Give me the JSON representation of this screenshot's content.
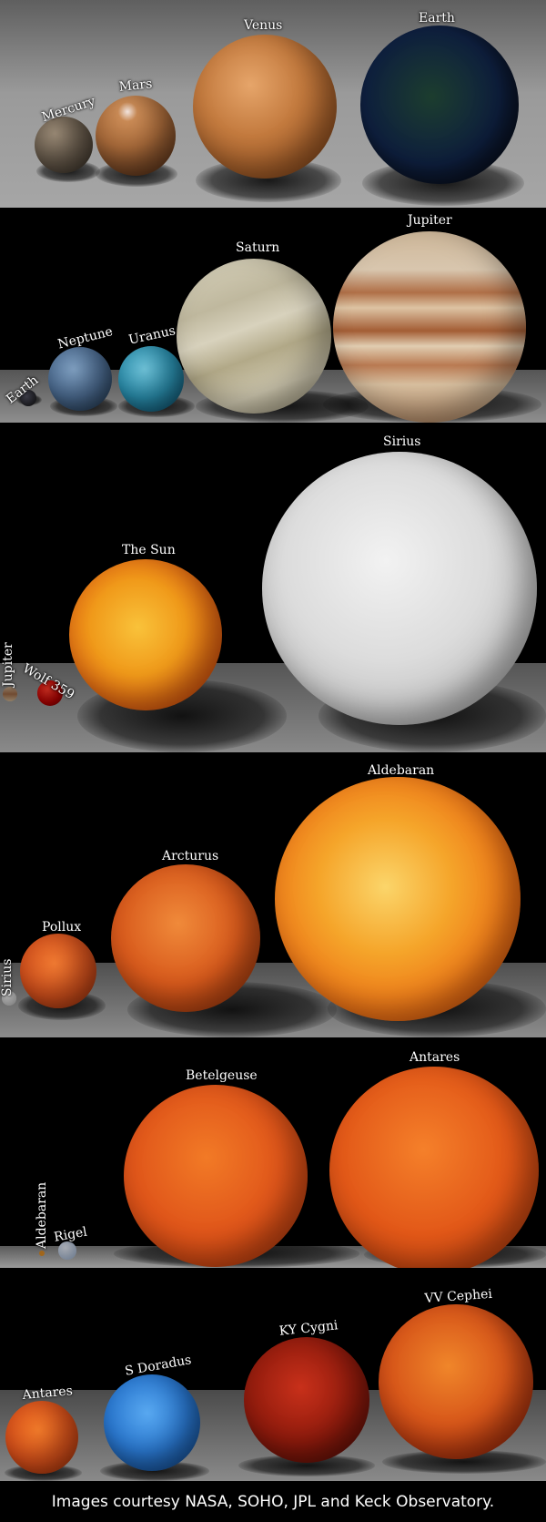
{
  "panels": [
    {
      "labels": [
        "Mercury",
        "Mars",
        "Venus",
        "Earth"
      ]
    },
    {
      "labels": [
        "Earth",
        "Neptune",
        "Uranus",
        "Saturn",
        "Jupiter"
      ]
    },
    {
      "labels": [
        "Jupiter",
        "Wolf 359",
        "The Sun",
        "Sirius"
      ]
    },
    {
      "labels": [
        "Sirius",
        "Pollux",
        "Arcturus",
        "Aldebaran"
      ]
    },
    {
      "labels": [
        "Aldebaran",
        "Rigel",
        "Betelgeuse",
        "Antares"
      ]
    },
    {
      "labels": [
        "Antares",
        "S Doradus",
        "KY Cygni",
        "VV Cephei"
      ]
    }
  ],
  "footer": {
    "credit": "Images courtesy NASA, SOHO, JPL and Keck Observatory."
  }
}
